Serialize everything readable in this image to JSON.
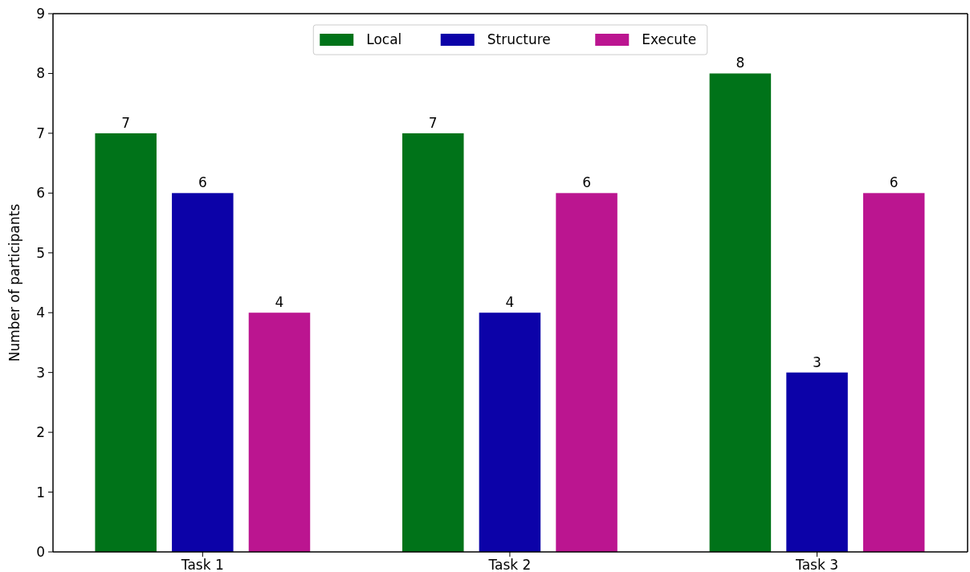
{
  "chart_data": {
    "type": "bar",
    "ylabel": "Number of participants",
    "categories": [
      "Task 1",
      "Task 2",
      "Task 3"
    ],
    "series": [
      {
        "name": "Local",
        "color": "#007319",
        "values": [
          7,
          7,
          8
        ]
      },
      {
        "name": "Structure",
        "color": "#0c02a8",
        "values": [
          6,
          4,
          3
        ]
      },
      {
        "name": "Execute",
        "color": "#bb1590",
        "values": [
          4,
          6,
          6
        ]
      }
    ],
    "ylim": [
      0,
      9
    ],
    "yticks": [
      0,
      1,
      2,
      3,
      4,
      5,
      6,
      7,
      8,
      9
    ],
    "data_labels": true,
    "legend": "top",
    "grid": false
  }
}
